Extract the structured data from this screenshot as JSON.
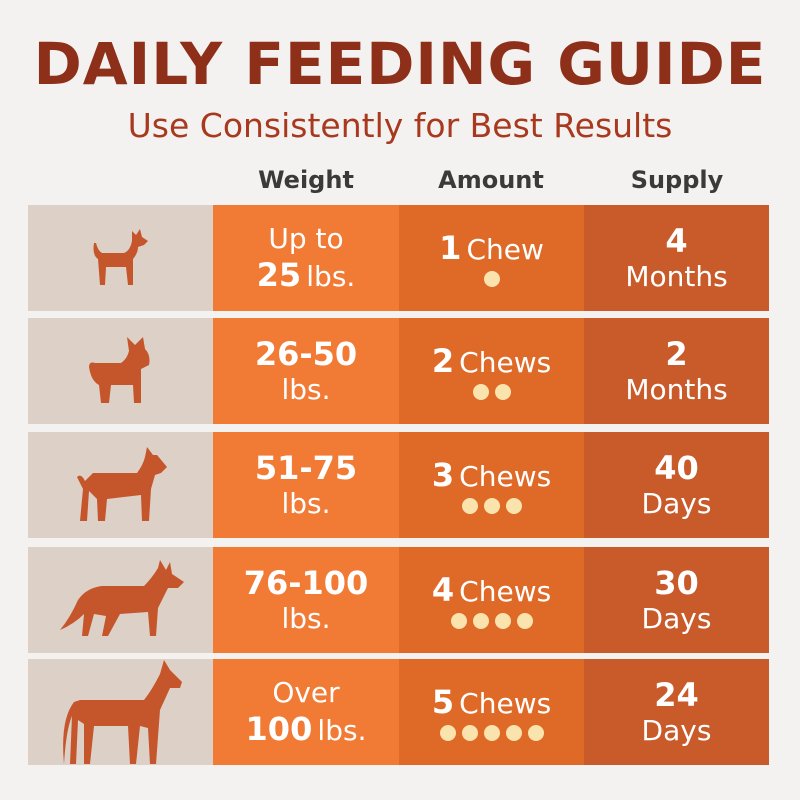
{
  "title": "DAILY FEEDING GUIDE",
  "subtitle": "Use Consistently for Best Results",
  "headers": {
    "weight": "Weight",
    "amount": "Amount",
    "supply": "Supply"
  },
  "colors": {
    "title": "#8e2f1a",
    "weight_col": "#f17a35",
    "amount_col": "#df6a28",
    "supply_col": "#c95a2a",
    "icon_col": "#ddd0c6",
    "dog": "#c5552a",
    "chew": "#fbe3ad"
  },
  "rows": [
    {
      "icon": "chihuahua-icon",
      "weight_line1": "Up to",
      "weight_line2_num": "25",
      "weight_line2_unit": "lbs.",
      "amount_num": "1",
      "amount_unit": "Chew",
      "chews": 1,
      "supply_num": "4",
      "supply_unit": "Months"
    },
    {
      "icon": "french-bulldog-icon",
      "weight_line1": "26-50",
      "weight_line2_unit": "lbs.",
      "amount_num": "2",
      "amount_unit": "Chews",
      "chews": 2,
      "supply_num": "2",
      "supply_unit": "Months"
    },
    {
      "icon": "pitbull-icon",
      "weight_line1": "51-75",
      "weight_line2_unit": "lbs.",
      "amount_num": "3",
      "amount_unit": "Chews",
      "chews": 3,
      "supply_num": "40",
      "supply_unit": "Days"
    },
    {
      "icon": "german-shepherd-icon",
      "weight_line1": "76-100",
      "weight_line2_unit": "lbs.",
      "amount_num": "4",
      "amount_unit": "Chews",
      "chews": 4,
      "supply_num": "30",
      "supply_unit": "Days"
    },
    {
      "icon": "great-dane-icon",
      "weight_line1": "Over",
      "weight_line2_num": "100",
      "weight_line2_unit": "lbs.",
      "amount_num": "5",
      "amount_unit": "Chews",
      "chews": 5,
      "supply_num": "24",
      "supply_unit": "Days"
    }
  ]
}
